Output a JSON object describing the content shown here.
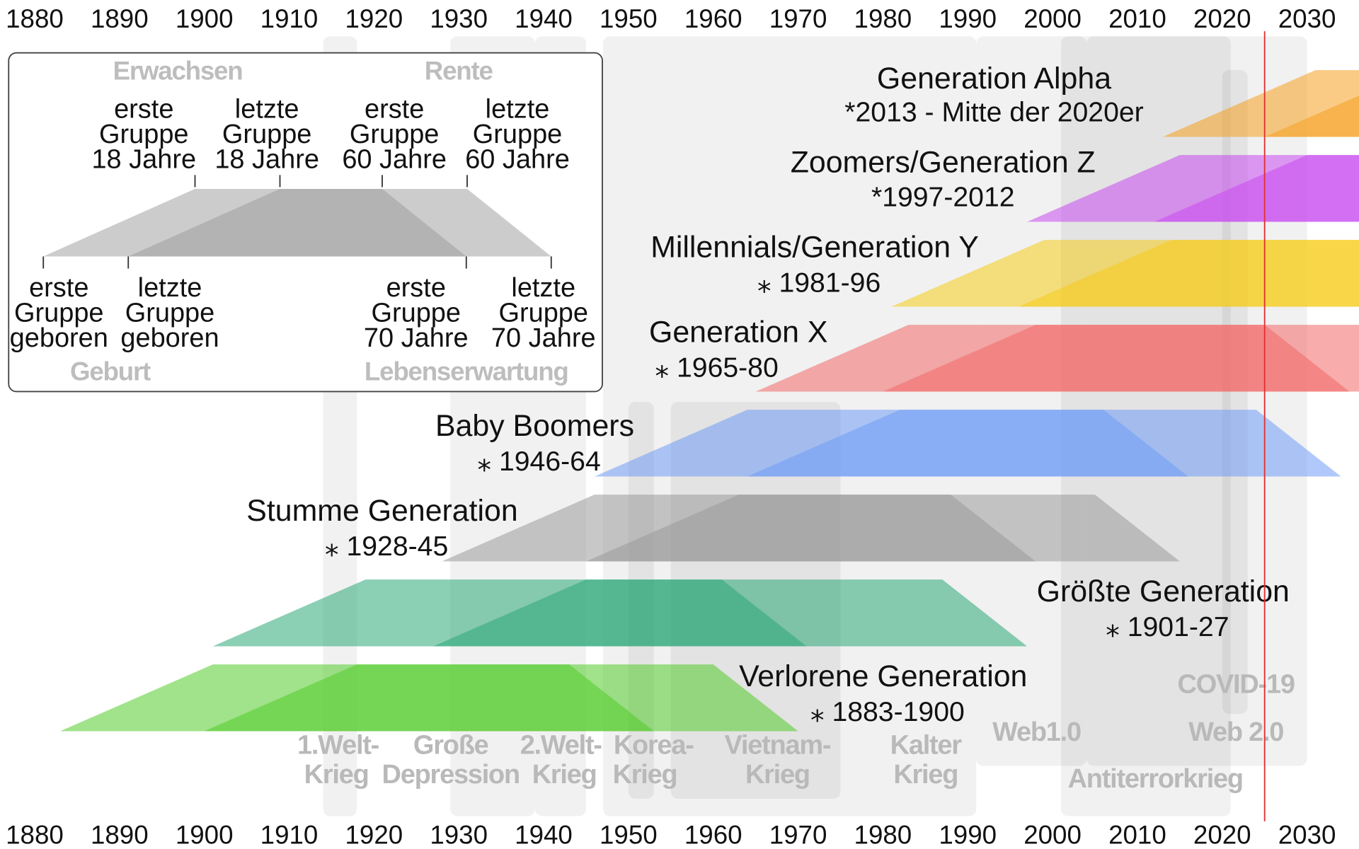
{
  "chart_data": {
    "type": "timeline",
    "x_axis": {
      "ticks": [
        1880,
        1890,
        1900,
        1910,
        1920,
        1930,
        1940,
        1950,
        1960,
        1970,
        1980,
        1990,
        2000,
        2010,
        2020,
        2030
      ],
      "position": "top and bottom"
    },
    "current_year_marker": {
      "year": 2025,
      "color": "#e03030"
    },
    "generations": [
      {
        "name": "Generation Alpha",
        "born_label": "*2013 - Mitte der 2020er",
        "start": 2013,
        "end": 2025,
        "color": "#f5a020"
      },
      {
        "name": "Zoomers/Generation Z",
        "born_label": "*1997-2012",
        "start": 1997,
        "end": 2012,
        "color": "#c84af0"
      },
      {
        "name": "Millennials/Generation Y",
        "born_label": "⁎ 1981-96",
        "start": 1981,
        "end": 1996,
        "color": "#f6cc1a"
      },
      {
        "name": "Generation X",
        "born_label": "⁎ 1965-80",
        "start": 1965,
        "end": 1980,
        "color": "#f26868"
      },
      {
        "name": "Baby Boomers",
        "born_label": "⁎ 1946-64",
        "start": 1946,
        "end": 1964,
        "color": "#6f9df5"
      },
      {
        "name": "Stumme Generation",
        "born_label": "⁎ 1928-45",
        "start": 1928,
        "end": 1945,
        "color": "#9a9a9a"
      },
      {
        "name": "Größte Generation",
        "born_label": "⁎ 1901-27",
        "start": 1901,
        "end": 1927,
        "color": "#2ca878"
      },
      {
        "name": "Verlorene Generation",
        "born_label": "⁎ 1883-1900",
        "start": 1883,
        "end": 1900,
        "color": "#52cc2a"
      }
    ],
    "events": [
      {
        "lines": [
          "1.Welt-",
          "Krieg"
        ],
        "start": 1914,
        "end": 1918
      },
      {
        "lines": [
          "Große",
          "Depression"
        ],
        "start": 1929,
        "end": 1939
      },
      {
        "lines": [
          "2.Welt-",
          "Krieg"
        ],
        "start": 1939,
        "end": 1945
      },
      {
        "lines": [
          "Korea-",
          "Krieg"
        ],
        "start": 1950,
        "end": 1953
      },
      {
        "lines": [
          "Vietnam-",
          "Krieg"
        ],
        "start": 1955,
        "end": 1975
      },
      {
        "lines": [
          "Kalter",
          "Krieg"
        ],
        "start": 1947,
        "end": 1991
      },
      {
        "lines": [
          "Web1.0"
        ],
        "start": 1991,
        "end": 2004
      },
      {
        "lines": [
          "Antiterrorkrieg"
        ],
        "start": 2001,
        "end": 2021
      },
      {
        "lines": [
          "Web 2.0"
        ],
        "start": 2004,
        "end": 2030
      },
      {
        "lines": [
          "COVID-19"
        ],
        "start": 2020,
        "end": 2023
      }
    ],
    "legend": {
      "top_headers": [
        "Erwachsen",
        "Rente"
      ],
      "top_labels": [
        [
          "erste",
          "Gruppe",
          "18 Jahre"
        ],
        [
          "letzte",
          "Gruppe",
          "18 Jahre"
        ],
        [
          "erste",
          "Gruppe",
          "60 Jahre"
        ],
        [
          "letzte",
          "Gruppe",
          "60 Jahre"
        ]
      ],
      "bottom_labels": [
        [
          "erste",
          "Gruppe",
          "geboren"
        ],
        [
          "letzte",
          "Gruppe",
          "geboren"
        ],
        [
          "erste",
          "Gruppe",
          "70 Jahre"
        ],
        [
          "letzte",
          "Gruppe",
          "70 Jahre"
        ]
      ],
      "bottom_headers": [
        "Geburt",
        "Lebenserwartung"
      ],
      "ages": [
        0,
        18,
        60,
        70
      ]
    }
  }
}
